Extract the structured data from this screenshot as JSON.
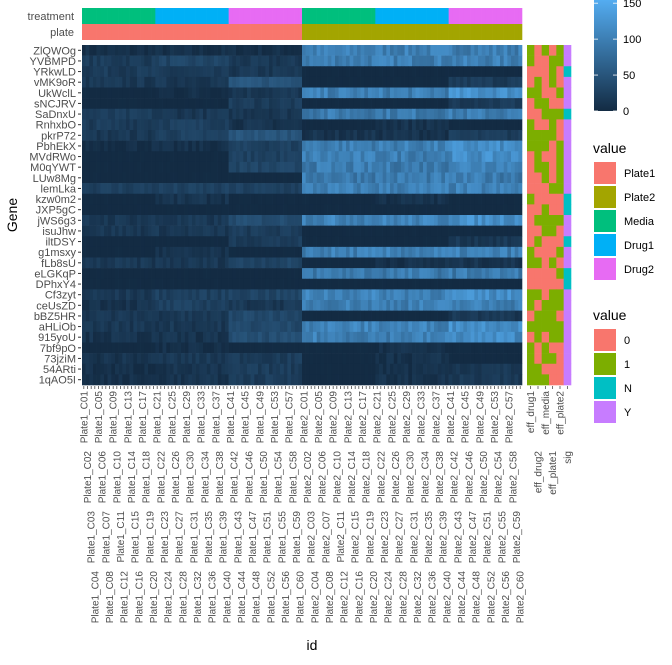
{
  "chart_data": {
    "type": "heatmap",
    "xlabel": "id",
    "ylabel": "Gene",
    "color_scale": {
      "low": "#132B43",
      "high": "#56B1F7",
      "limits": [
        0,
        160
      ],
      "ticks": [
        0,
        50,
        100,
        150
      ],
      "tick_labels": [
        "0",
        "50",
        "100",
        "150"
      ]
    },
    "top_annotations": {
      "labels": [
        "treatment",
        "plate"
      ],
      "treatment_groups": [
        "Media",
        "Drug1",
        "Drug2",
        "Media",
        "Drug1",
        "Drug2"
      ],
      "plate_groups": [
        "Plate1",
        "Plate2"
      ],
      "columns_per_treatment_block": 20
    },
    "genes": [
      "ZlQWOg",
      "YVBMPD",
      "YRkwLD",
      "vMK9oR",
      "UkWclL",
      "sNCJRV",
      "SaDnxU",
      "RnhxbO",
      "pkrP72",
      "PbhEkX",
      "MVdRWo",
      "M0qYWT",
      "LUw8Mg",
      "lemLka",
      "kzw0m2",
      "JXP5gC",
      "jWS6g3",
      "isuJhw",
      "iltDSY",
      "g1msxy",
      "fLb8sU",
      "eLGKqP",
      "DPhxY4",
      "Cf3zyt",
      "ceUsZD",
      "bBZ5HR",
      "aHLiOb",
      "915yoU",
      "7bf9pO",
      "73jziM",
      "54ARti",
      "1qAO5I"
    ],
    "group_order": [
      "Plate1 Media",
      "Plate1 Drug1",
      "Plate1 Drug2",
      "Plate2 Media",
      "Plate2 Drug1",
      "Plate2 Drug2"
    ],
    "group_means": [
      [
        5,
        5,
        5,
        100,
        100,
        100
      ],
      [
        20,
        30,
        15,
        100,
        100,
        100
      ],
      [
        20,
        15,
        15,
        0,
        0,
        0
      ],
      [
        15,
        15,
        50,
        0,
        0,
        20
      ],
      [
        0,
        5,
        15,
        100,
        100,
        120
      ],
      [
        0,
        0,
        20,
        0,
        0,
        20
      ],
      [
        20,
        15,
        15,
        95,
        95,
        95
      ],
      [
        20,
        25,
        10,
        0,
        10,
        0
      ],
      [
        15,
        25,
        50,
        10,
        10,
        20
      ],
      [
        5,
        5,
        25,
        100,
        100,
        115
      ],
      [
        0,
        0,
        25,
        100,
        100,
        115
      ],
      [
        0,
        0,
        30,
        95,
        95,
        110
      ],
      [
        0,
        0,
        0,
        95,
        95,
        95
      ],
      [
        25,
        25,
        25,
        100,
        100,
        100
      ],
      [
        0,
        10,
        0,
        0,
        8,
        0
      ],
      [
        0,
        0,
        0,
        0,
        0,
        0
      ],
      [
        15,
        15,
        40,
        105,
        105,
        120
      ],
      [
        15,
        15,
        20,
        0,
        0,
        0
      ],
      [
        0,
        0,
        20,
        0,
        0,
        15
      ],
      [
        0,
        8,
        0,
        100,
        100,
        100
      ],
      [
        15,
        15,
        30,
        0,
        8,
        10
      ],
      [
        0,
        0,
        0,
        95,
        95,
        95
      ],
      [
        0,
        0,
        0,
        0,
        0,
        0
      ],
      [
        15,
        25,
        30,
        105,
        105,
        115
      ],
      [
        10,
        25,
        15,
        100,
        100,
        100
      ],
      [
        15,
        15,
        35,
        0,
        0,
        15
      ],
      [
        15,
        15,
        35,
        105,
        105,
        120
      ],
      [
        10,
        10,
        40,
        100,
        100,
        115
      ],
      [
        0,
        5,
        0,
        0,
        8,
        0
      ],
      [
        10,
        15,
        20,
        0,
        8,
        0
      ],
      [
        5,
        10,
        20,
        0,
        8,
        15
      ],
      [
        5,
        10,
        20,
        0,
        8,
        15
      ]
    ],
    "x_labels": [
      "Plate1_C01",
      "Plate1_C02",
      "Plate1_C03",
      "Plate1_C04",
      "Plate1_C05",
      "Plate1_C06",
      "Plate1_C07",
      "Plate1_C08",
      "Plate1_C09",
      "Plate1_C10",
      "Plate1_C11",
      "Plate1_C12",
      "Plate1_C13",
      "Plate1_C14",
      "Plate1_C15",
      "Plate1_C16",
      "Plate1_C17",
      "Plate1_C18",
      "Plate1_C19",
      "Plate1_C20",
      "Plate1_C21",
      "Plate1_C22",
      "Plate1_C23",
      "Plate1_C24",
      "Plate1_C25",
      "Plate1_C26",
      "Plate1_C27",
      "Plate1_C28",
      "Plate1_C29",
      "Plate1_C30",
      "Plate1_C31",
      "Plate1_C32",
      "Plate1_C33",
      "Plate1_C34",
      "Plate1_C35",
      "Plate1_C36",
      "Plate1_C37",
      "Plate1_C38",
      "Plate1_C39",
      "Plate1_C40",
      "Plate1_C41",
      "Plate1_C42",
      "Plate1_C43",
      "Plate1_C44",
      "Plate1_C45",
      "Plate1_C46",
      "Plate1_C47",
      "Plate1_C48",
      "Plate1_C49",
      "Plate1_C50",
      "Plate1_C51",
      "Plate1_C52",
      "Plate1_C53",
      "Plate1_C54",
      "Plate1_C55",
      "Plate1_C56",
      "Plate1_C57",
      "Plate1_C58",
      "Plate1_C59",
      "Plate1_C60",
      "Plate2_C01",
      "Plate2_C02",
      "Plate2_C03",
      "Plate2_C04",
      "Plate2_C05",
      "Plate2_C06",
      "Plate2_C07",
      "Plate2_C08",
      "Plate2_C09",
      "Plate2_C10",
      "Plate2_C11",
      "Plate2_C12",
      "Plate2_C13",
      "Plate2_C14",
      "Plate2_C15",
      "Plate2_C16",
      "Plate2_C17",
      "Plate2_C18",
      "Plate2_C19",
      "Plate2_C20",
      "Plate2_C21",
      "Plate2_C22",
      "Plate2_C23",
      "Plate2_C24",
      "Plate2_C25",
      "Plate2_C26",
      "Plate2_C27",
      "Plate2_C28",
      "Plate2_C29",
      "Plate2_C30",
      "Plate2_C31",
      "Plate2_C32",
      "Plate2_C33",
      "Plate2_C34",
      "Plate2_C35",
      "Plate2_C36",
      "Plate2_C37",
      "Plate2_C38",
      "Plate2_C39",
      "Plate2_C40",
      "Plate2_C41",
      "Plate2_C42",
      "Plate2_C43",
      "Plate2_C44",
      "Plate2_C45",
      "Plate2_C46",
      "Plate2_C47",
      "Plate2_C48",
      "Plate2_C49",
      "Plate2_C50",
      "Plate2_C51",
      "Plate2_C52",
      "Plate2_C53",
      "Plate2_C54",
      "Plate2_C55",
      "Plate2_C56",
      "Plate2_C57",
      "Plate2_C58",
      "Plate2_C59",
      "Plate2_C60"
    ],
    "side_annotations": {
      "columns": [
        "eff_drug1",
        "eff_drug2",
        "eff_media",
        "eff_plate1",
        "eff_plate2",
        "sig"
      ],
      "values": [
        [
          "1",
          "0",
          "1",
          "0",
          "1",
          "Y"
        ],
        [
          "1",
          "0",
          "0",
          "1",
          "1",
          "Y"
        ],
        [
          "0",
          "0",
          "0",
          "1",
          "0",
          "N"
        ],
        [
          "0",
          "1",
          "0",
          "1",
          "0",
          "Y"
        ],
        [
          "1",
          "1",
          "0",
          "0",
          "1",
          "Y"
        ],
        [
          "0",
          "1",
          "1",
          "0",
          "0",
          "Y"
        ],
        [
          "0",
          "0",
          "1",
          "1",
          "1",
          "N"
        ],
        [
          "1",
          "0",
          "0",
          "1",
          "0",
          "Y"
        ],
        [
          "1",
          "1",
          "1",
          "1",
          "0",
          "Y"
        ],
        [
          "1",
          "1",
          "1",
          "0",
          "1",
          "Y"
        ],
        [
          "0",
          "1",
          "0",
          "0",
          "1",
          "Y"
        ],
        [
          "0",
          "1",
          "1",
          "0",
          "1",
          "Y"
        ],
        [
          "0",
          "0",
          "1",
          "0",
          "1",
          "Y"
        ],
        [
          "0",
          "0",
          "0",
          "1",
          "1",
          "Y"
        ],
        [
          "1",
          "0",
          "0",
          "0",
          "0",
          "N"
        ],
        [
          "0",
          "0",
          "1",
          "0",
          "0",
          "N"
        ],
        [
          "0",
          "1",
          "1",
          "1",
          "1",
          "Y"
        ],
        [
          "0",
          "0",
          "1",
          "1",
          "0",
          "Y"
        ],
        [
          "0",
          "1",
          "0",
          "0",
          "0",
          "N"
        ],
        [
          "1",
          "0",
          "0",
          "0",
          "1",
          "Y"
        ],
        [
          "1",
          "1",
          "0",
          "1",
          "0",
          "Y"
        ],
        [
          "0",
          "0",
          "0",
          "0",
          "1",
          "N"
        ],
        [
          "0",
          "0",
          "0",
          "0",
          "0",
          "N"
        ],
        [
          "1",
          "1",
          "0",
          "1",
          "1",
          "Y"
        ],
        [
          "1",
          "0",
          "1",
          "1",
          "1",
          "Y"
        ],
        [
          "0",
          "1",
          "1",
          "1",
          "0",
          "Y"
        ],
        [
          "1",
          "1",
          "1",
          "1",
          "1",
          "Y"
        ],
        [
          "0",
          "1",
          "0",
          "1",
          "1",
          "Y"
        ],
        [
          "1",
          "0",
          "1",
          "0",
          "0",
          "Y"
        ],
        [
          "1",
          "0",
          "1",
          "1",
          "0",
          "Y"
        ],
        [
          "1",
          "1",
          "0",
          "0",
          "0",
          "Y"
        ],
        [
          "1",
          "1",
          "1",
          "0",
          "0",
          "Y"
        ]
      ]
    },
    "legends": [
      {
        "title": "value",
        "entries": [
          "Plate1",
          "Plate2",
          "Media",
          "Drug1",
          "Drug2"
        ],
        "colors": [
          "#F8766D",
          "#A3A500",
          "#00BF7D",
          "#00B0F6",
          "#E76BF3"
        ]
      },
      {
        "title": "value",
        "entries": [
          "0",
          "1",
          "N",
          "Y"
        ],
        "colors": [
          "#F8766D",
          "#7CAE00",
          "#00BFC4",
          "#C77CFF"
        ]
      }
    ]
  }
}
